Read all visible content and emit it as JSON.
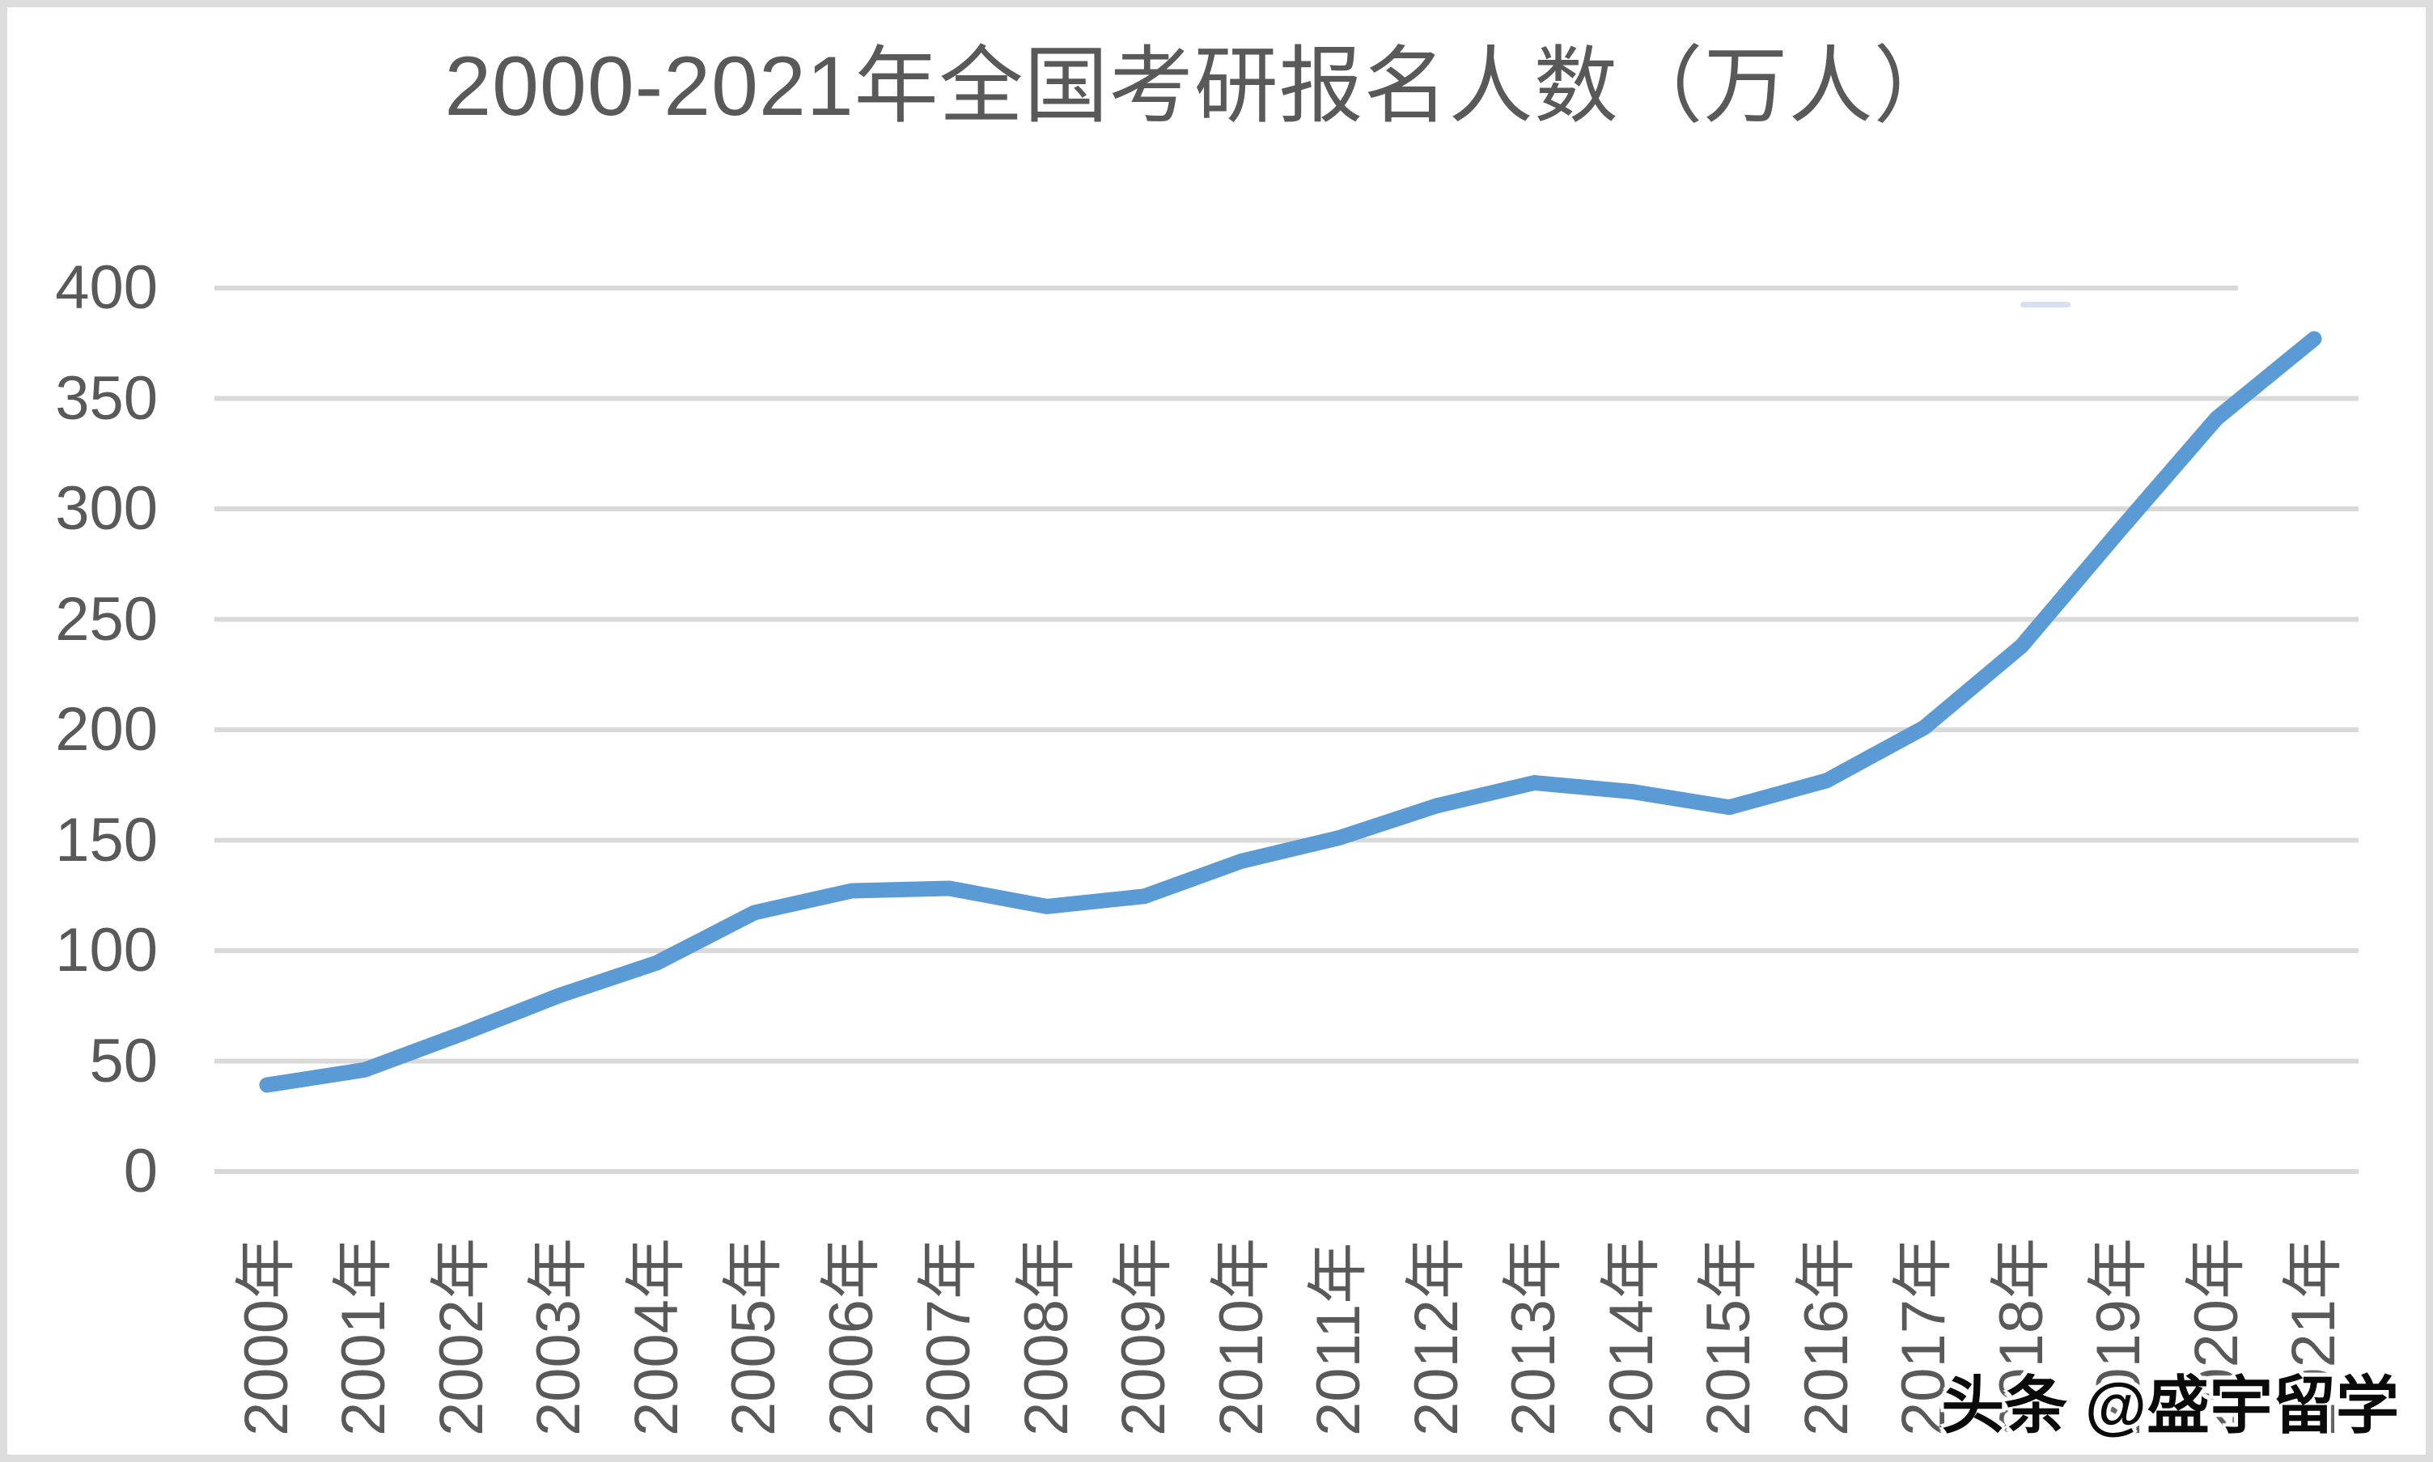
{
  "watermark": {
    "text": "头条 @盛宇留学"
  },
  "chart_data": {
    "type": "line",
    "title": "2000-2021年全国考研报名人数（万人）",
    "categories": [
      "2000年",
      "2001年",
      "2002年",
      "2003年",
      "2004年",
      "2005年",
      "2006年",
      "2007年",
      "2008年",
      "2009年",
      "2010年",
      "2011年",
      "2012年",
      "2013年",
      "2014年",
      "2015年",
      "2016年",
      "2017年",
      "2018年",
      "2019年",
      "2020年",
      "2021年"
    ],
    "values": [
      39.2,
      46,
      62.4,
      79.7,
      94.5,
      117.2,
      127.1,
      128.2,
      120,
      124.6,
      140.6,
      151.1,
      165.6,
      176,
      172,
      164.9,
      177,
      201,
      238,
      290,
      341,
      377
    ],
    "xlabel": "",
    "ylabel": "",
    "ylim": [
      0,
      400
    ],
    "ytick_interval": 50,
    "ytick_labels": [
      "0",
      "50",
      "100",
      "150",
      "200",
      "250",
      "300",
      "350",
      "400"
    ],
    "grid": true,
    "legend": "none",
    "colors": {
      "line": "#5B9BD5",
      "gridline": "#D9D9D9",
      "text": "#595959",
      "frame": "#DCDCDC",
      "watermark": "#000000"
    }
  }
}
